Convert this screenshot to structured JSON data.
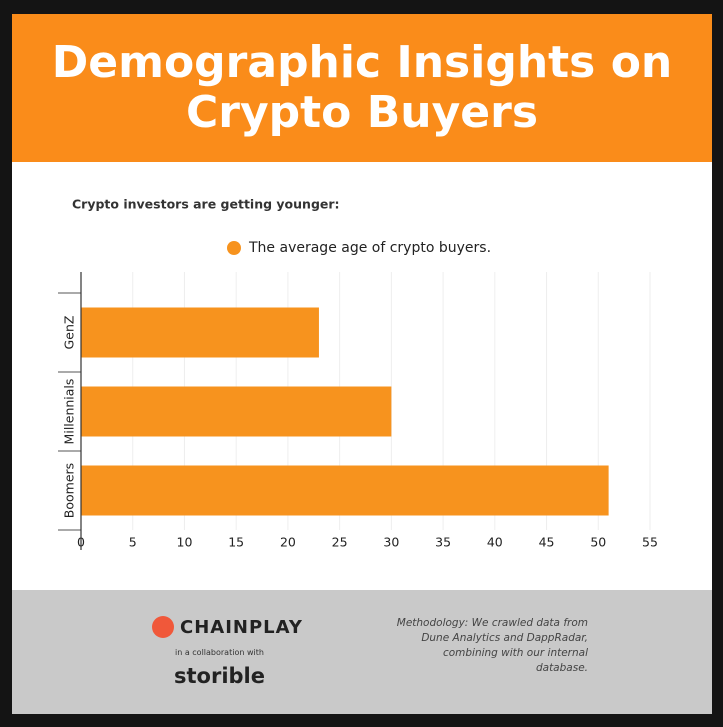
{
  "chart_data": {
    "type": "bar",
    "orientation": "horizontal",
    "title": "Demographic Insights on Crypto Buyers",
    "subtitle": "Crypto investors are getting younger:",
    "categories": [
      "GenZ",
      "Millennials",
      "Boomers"
    ],
    "series": [
      {
        "name": "The average age of crypto buyers.",
        "color": "#f7931e",
        "values": [
          23,
          30,
          51
        ]
      }
    ],
    "xlim": [
      0,
      55
    ],
    "xticks": [
      0,
      5,
      10,
      15,
      20,
      25,
      30,
      35,
      40,
      45,
      50,
      55
    ],
    "grid": true
  },
  "footer": {
    "brand": "CHAINPLAY",
    "collab": "in a collaboration with",
    "partner": "storible",
    "methodology": "Methodology: We crawled data from Dune Analytics and DappRadar, combining with our internal database."
  }
}
